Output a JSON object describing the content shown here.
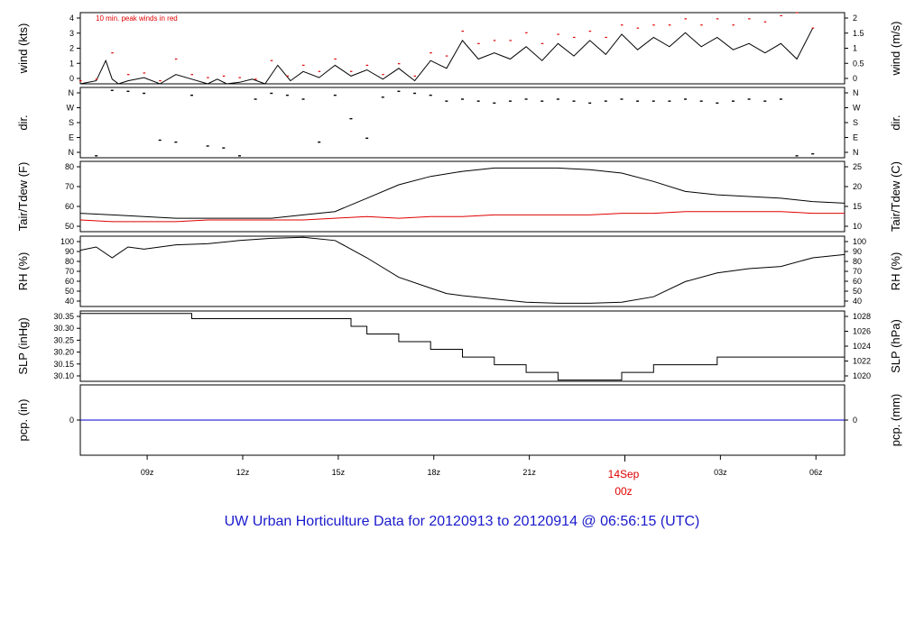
{
  "footer_title": "UW Urban Horticulture Data for 20120913  to  20120914 @ 06:56:15  (UTC)",
  "date_marker": {
    "day": "14Sep",
    "hour": "00z"
  },
  "colors": {
    "primary": "#000000",
    "tdew": "#e00000",
    "peak": "#e00000",
    "precip": "#0000cc",
    "title": "#1a1acc",
    "date": "#e00000"
  },
  "chart_data": [
    {
      "id": "wind",
      "type": "line",
      "ylabel_left": "wind (kts)",
      "ylabel_right": "wind (m/s)",
      "annotation": "10 min. peak winds in red",
      "ylim": [
        0,
        4.6
      ],
      "left_ticks": [
        "0",
        "1",
        "2",
        "3",
        "4"
      ],
      "right_ticks": [
        "0",
        "0.5",
        "1",
        "1.5",
        "2"
      ],
      "series": [
        {
          "x": [
            0,
            0.5,
            0.8,
            1.0,
            1.2,
            1.5,
            2.0,
            2.5,
            3.0,
            3.5,
            4.0,
            4.3,
            4.6,
            5.0,
            5.4,
            5.8,
            6.2,
            6.6,
            7.0,
            7.5,
            8.0,
            8.5,
            9.0,
            9.5,
            10.0,
            10.5,
            11.0,
            11.5,
            12.0,
            12.5,
            13.0,
            13.5,
            14.0,
            14.5,
            15.0,
            15.5,
            16.0,
            16.5,
            17.0,
            17.5,
            18.0,
            18.5,
            19.0,
            19.5,
            20.0,
            20.5,
            21.0,
            21.5,
            22.0,
            22.5,
            23.0
          ],
          "values": [
            0,
            0.2,
            1.5,
            0.3,
            0,
            0.2,
            0.4,
            0,
            0.6,
            0.3,
            0,
            0.3,
            0,
            0.1,
            0.3,
            0,
            1.2,
            0.2,
            0.8,
            0.4,
            1.2,
            0.5,
            0.9,
            0.3,
            1.0,
            0.2,
            1.5,
            1.0,
            2.8,
            1.6,
            2.0,
            1.6,
            2.4,
            1.5,
            2.6,
            1.8,
            2.8,
            1.9,
            3.2,
            2.2,
            3.0,
            2.4,
            3.3,
            2.4,
            3.0,
            2.2,
            2.6,
            2.0,
            2.6,
            1.6,
            3.6
          ]
        },
        {
          "x": [
            0,
            0.5,
            1.0,
            1.5,
            2.0,
            2.5,
            3.0,
            3.5,
            4.0,
            4.5,
            5.0,
            5.5,
            6.0,
            6.5,
            7.0,
            7.5,
            8.0,
            8.5,
            9.0,
            9.5,
            10.0,
            10.5,
            11.0,
            11.5,
            12.0,
            12.5,
            13.0,
            13.5,
            14.0,
            14.5,
            15.0,
            15.5,
            16.0,
            16.5,
            17.0,
            17.5,
            18.0,
            18.5,
            19.0,
            19.5,
            20.0,
            20.5,
            21.0,
            21.5,
            22.0,
            22.5,
            23.0
          ],
          "values": [
            0.2,
            0.3,
            2.0,
            0.6,
            0.7,
            0.2,
            1.6,
            0.6,
            0.4,
            0.5,
            0.4,
            0.3,
            1.5,
            0.5,
            1.2,
            0.8,
            1.6,
            0.8,
            1.2,
            0.6,
            1.3,
            0.5,
            2.0,
            1.8,
            3.4,
            2.6,
            2.8,
            2.8,
            3.3,
            2.6,
            3.2,
            3.0,
            3.4,
            3.0,
            3.8,
            3.6,
            3.8,
            3.8,
            4.2,
            3.8,
            4.2,
            3.8,
            4.2,
            4.0,
            4.4,
            4.6,
            3.6
          ]
        }
      ]
    },
    {
      "id": "dir",
      "type": "scatter",
      "ylabel_left": "dir.",
      "ylabel_right": "dir.",
      "ylim": [
        0,
        360
      ],
      "left_ticks": [
        "N",
        "E",
        "S",
        "W",
        "N"
      ],
      "right_ticks": [
        "N",
        "E",
        "S",
        "W",
        "N"
      ],
      "series": [
        {
          "x": [
            0.5,
            1.0,
            1.5,
            2.0,
            2.5,
            3.0,
            3.5,
            4.0,
            4.5,
            5.0,
            5.5,
            6.0,
            6.5,
            7.0,
            7.5,
            8.0,
            8.5,
            9.0,
            9.5,
            10.0,
            10.5,
            11.0,
            11.5,
            12.0,
            12.5,
            13.0,
            13.5,
            14.0,
            14.5,
            15.0,
            15.5,
            16.0,
            16.5,
            17.0,
            17.5,
            18.0,
            18.5,
            19.0,
            19.5,
            20.0,
            20.5,
            21.0,
            21.5,
            22.0,
            22.5,
            23.0
          ],
          "values": [
            10,
            345,
            340,
            330,
            90,
            80,
            320,
            60,
            50,
            10,
            300,
            330,
            320,
            300,
            80,
            320,
            200,
            100,
            310,
            340,
            330,
            320,
            290,
            300,
            290,
            280,
            290,
            300,
            290,
            300,
            290,
            280,
            290,
            300,
            290,
            290,
            290,
            300,
            290,
            280,
            290,
            300,
            290,
            300,
            10,
            20
          ]
        }
      ]
    },
    {
      "id": "temp",
      "type": "line",
      "ylabel_left": "Tair/Tdew (F)",
      "ylabel_right": "Tair/Tdew (C)",
      "ylim": [
        40,
        82
      ],
      "left_ticks": [
        "50",
        "60",
        "70",
        "80"
      ],
      "right_ticks": [
        "10",
        "15",
        "20",
        "25"
      ],
      "series": [
        {
          "x": [
            0,
            1,
            2,
            3,
            4,
            5,
            6,
            7,
            8,
            9,
            10,
            11,
            12,
            13,
            14,
            15,
            16,
            17,
            18,
            19,
            20,
            21,
            22,
            23,
            24
          ],
          "values": [
            51,
            50,
            49,
            48,
            48,
            48,
            48,
            50,
            52,
            60,
            68,
            73,
            76,
            78,
            78,
            78,
            77,
            75,
            70,
            64,
            62,
            61,
            60,
            58,
            57
          ]
        },
        {
          "x": [
            0,
            1,
            2,
            3,
            4,
            5,
            6,
            7,
            8,
            9,
            10,
            11,
            12,
            13,
            14,
            15,
            16,
            17,
            18,
            19,
            20,
            21,
            22,
            23,
            24
          ],
          "values": [
            47,
            46,
            46,
            46,
            47,
            47,
            47,
            47,
            48,
            49,
            48,
            49,
            49,
            50,
            50,
            50,
            50,
            51,
            51,
            52,
            52,
            52,
            52,
            51,
            51
          ]
        }
      ]
    },
    {
      "id": "rh",
      "type": "line",
      "ylabel_left": "RH (%)",
      "ylabel_right": "RH (%)",
      "ylim": [
        35,
        100
      ],
      "left_ticks": [
        "40",
        "50",
        "60",
        "70",
        "80",
        "90",
        "100"
      ],
      "right_ticks": [
        "40",
        "50",
        "60",
        "70",
        "80",
        "90",
        "100"
      ],
      "series": [
        {
          "x": [
            0,
            0.5,
            1,
            1.5,
            2,
            3,
            4,
            5,
            6,
            7,
            8,
            9,
            10,
            11,
            11.5,
            12,
            13,
            14,
            15,
            16,
            17,
            18,
            19,
            20,
            21,
            22,
            23,
            24
          ],
          "values": [
            87,
            90,
            80,
            90,
            88,
            92,
            93,
            96,
            98,
            99,
            96,
            80,
            62,
            52,
            47,
            45,
            42,
            39,
            38,
            38,
            39,
            44,
            58,
            66,
            70,
            72,
            80,
            83
          ]
        }
      ]
    },
    {
      "id": "slp",
      "type": "line",
      "ylabel_left": "SLP (inHg)",
      "ylabel_right": "SLP (hPa)",
      "ylim": [
        30.085,
        30.36
      ],
      "left_ticks": [
        "30.10",
        "30.15",
        "30.20",
        "30.25",
        "30.30",
        "30.35"
      ],
      "right_ticks": [
        "1020",
        "1022",
        "1024",
        "1026",
        "1028"
      ],
      "series": [
        {
          "x": [
            0,
            3.5,
            3.5,
            8.5,
            8.5,
            9.0,
            9.0,
            10.0,
            10.0,
            11.0,
            11.0,
            12.0,
            12.0,
            13.0,
            13.0,
            14.0,
            14.0,
            15.0,
            15.0,
            16.0,
            16.0,
            17.0,
            17.0,
            18.0,
            18.0,
            20.0,
            20.0,
            24.0
          ],
          "values": [
            30.35,
            30.35,
            30.33,
            30.33,
            30.3,
            30.3,
            30.27,
            30.27,
            30.24,
            30.24,
            30.21,
            30.21,
            30.18,
            30.18,
            30.15,
            30.15,
            30.12,
            30.12,
            30.09,
            30.09,
            30.09,
            30.09,
            30.12,
            30.12,
            30.15,
            30.15,
            30.18,
            30.18
          ]
        }
      ]
    },
    {
      "id": "pcp",
      "type": "line",
      "ylabel_left": "pcp. (in)",
      "ylabel_right": "pcp. (mm)",
      "ylim": [
        -1,
        1
      ],
      "left_ticks": [
        "0"
      ],
      "right_ticks": [
        "0"
      ],
      "series": [
        {
          "x": [
            0,
            24
          ],
          "values": [
            0,
            0
          ]
        }
      ]
    }
  ],
  "x_ticks": [
    "09z",
    "12z",
    "15z",
    "18z",
    "21z",
    "03z",
    "06z"
  ]
}
